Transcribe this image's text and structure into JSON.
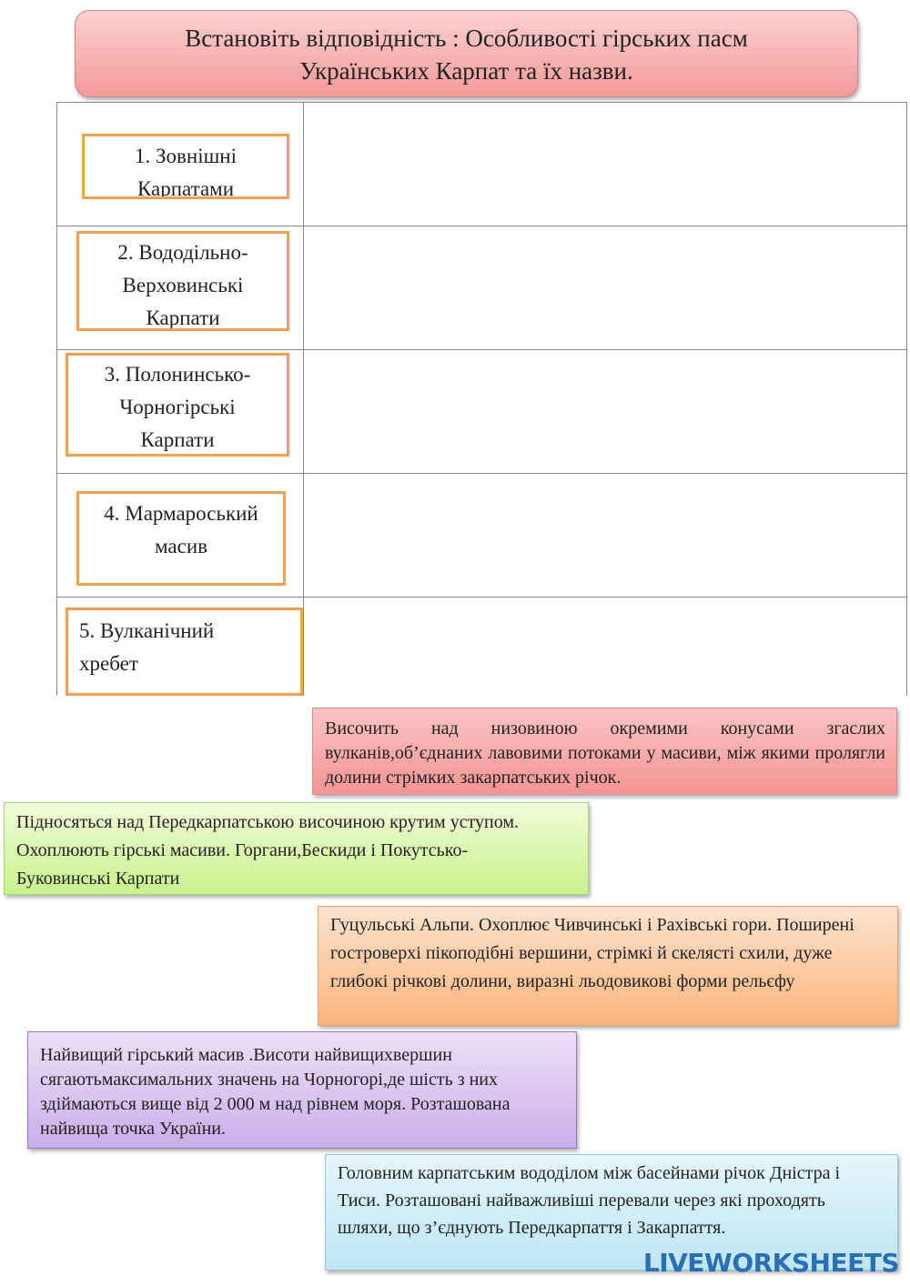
{
  "header": {
    "title": [
      "Встановіть відповідність : Особливості гірських пасм",
      "Українських Карпат та їх назви."
    ]
  },
  "table": {
    "rows": [
      {
        "label": [
          "1. Зовнішні",
          "Карпатами"
        ]
      },
      {
        "label": [
          "2. Вододільно-",
          "Верховинські",
          "Карпати"
        ]
      },
      {
        "label": [
          "3. Полонинсько-",
          "Чорногірські",
          "Карпати"
        ]
      },
      {
        "label": [
          "4. Мармароський",
          "масив"
        ]
      },
      {
        "label": [
          "5. Вулканічний",
          "хребет"
        ]
      }
    ]
  },
  "descriptions": [
    "Височить над низовиною окремими конусами згаслих вулканів,об’єднаних лавовими потоками у масиви, між якими пролягли долини стрімких закарпатських річок.",
    "Підносяться над Передкарпатською височиною крутим уступом. Охоплюють гірські масиви. Горгани,Бескиди і Покутсько-Буковинські Карпати",
    "Гуцульські Альпи. Охоплює Чивчинські і Рахівські гори. Поширені гостроверхі пікоподібні вершини, стрімкі й скелясті схили, дуже глибокі річкові долини, виразні льодовикові форми рельєфу",
    "Найвищий гірський масив .Висоти найвищихвершин сягаютьмаксимальних значень на Чорногорі,де шість з них здіймаються вище від 2 000 м над рівнем моря. Розташована  найвища точка України.",
    "Головним карпатським вододілом між басейнами річок Дністра і Тиси. Розташовані найважливіші перевали через які проходять шляхи, що з’єднують Передкарпаття і Закарпаття."
  ],
  "footer": {
    "logo": "LIVEWORKSHEETS"
  }
}
